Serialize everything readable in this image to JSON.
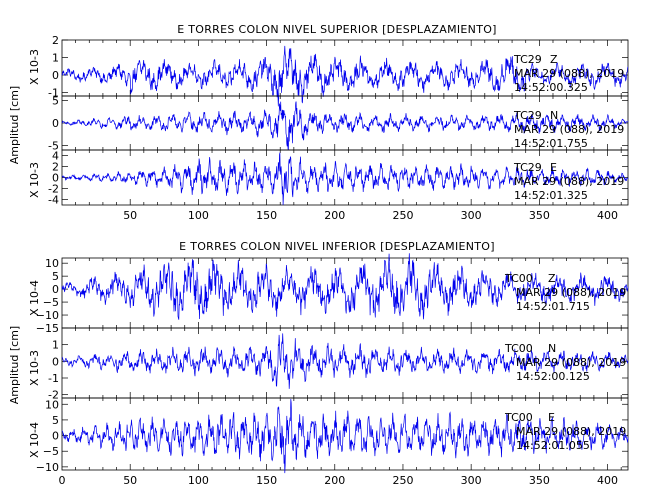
{
  "chart_data": [
    {
      "type": "line",
      "title": "E TORRES COLON NIVEL SUPERIOR [DESPLAZAMIENTO]",
      "ylabel": "Amplitud [cm]",
      "xlim": [
        0,
        415
      ],
      "x_ticks": [
        50,
        100,
        150,
        200,
        250,
        300,
        350,
        400
      ],
      "panels": [
        {
          "station": "TC29",
          "component": "Z",
          "date": "MAR 29 (088), 2019",
          "time": "14:52:00.325",
          "scale": "X 10-3",
          "ylim": [
            -1.2,
            2
          ],
          "y_ticks": [
            -1,
            0,
            1,
            2
          ],
          "y_tick_labels": [
            "-1",
            "0",
            "1",
            "2"
          ],
          "envelope": [
            [
              0,
              0.3
            ],
            [
              40,
              0.5
            ],
            [
              50,
              0.9
            ],
            [
              100,
              0.6
            ],
            [
              150,
              0.9
            ],
            [
              160,
              1.8
            ],
            [
              170,
              1.4
            ],
            [
              200,
              0.9
            ],
            [
              300,
              0.7
            ],
            [
              330,
              1.1
            ],
            [
              350,
              0.5
            ],
            [
              400,
              0.7
            ],
            [
              415,
              0.5
            ]
          ]
        },
        {
          "station": "TC29",
          "component": "N",
          "date": "MAR 29 (088), 2019",
          "time": "14:52:01.755",
          "scale": "",
          "ylim": [
            -6,
            6
          ],
          "y_ticks": [
            -5,
            0,
            5
          ],
          "y_tick_labels": [
            "-5",
            "0",
            "5"
          ],
          "envelope": [
            [
              0,
              0.3
            ],
            [
              50,
              1.5
            ],
            [
              100,
              2
            ],
            [
              150,
              2.5
            ],
            [
              165,
              5.8
            ],
            [
              180,
              3
            ],
            [
              200,
              2
            ],
            [
              300,
              1.5
            ],
            [
              340,
              2
            ],
            [
              400,
              1.5
            ],
            [
              415,
              0.5
            ]
          ]
        },
        {
          "station": "TC29",
          "component": "E",
          "date": "MAR 29 (088), 2019",
          "time": "14:52:01.325",
          "scale": "X 10-3",
          "ylim": [
            -5,
            5
          ],
          "y_ticks": [
            -4,
            -2,
            0,
            2,
            4
          ],
          "y_tick_labels": [
            "-4",
            "-2",
            "0",
            "2",
            "4"
          ],
          "envelope": [
            [
              0,
              0.3
            ],
            [
              50,
              1
            ],
            [
              90,
              2.5
            ],
            [
              100,
              3
            ],
            [
              150,
              2.5
            ],
            [
              165,
              4.8
            ],
            [
              180,
              2.5
            ],
            [
              250,
              2
            ],
            [
              300,
              2
            ],
            [
              350,
              1.5
            ],
            [
              400,
              1.2
            ],
            [
              415,
              0.5
            ]
          ]
        }
      ]
    },
    {
      "type": "line",
      "title": "E TORRES COLON NIVEL INFERIOR [DESPLAZAMIENTO]",
      "ylabel": "Amplitud [cm]",
      "xlim": [
        0,
        415
      ],
      "x_ticks": [
        0,
        50,
        100,
        150,
        200,
        250,
        300,
        350,
        400
      ],
      "panels": [
        {
          "station": "TC00",
          "component": "Z",
          "date": "MAR 29 (088), 2019",
          "time": "14:52:01.715",
          "scale": "X 10-4",
          "ylim": [
            -15,
            12
          ],
          "y_ticks": [
            -15,
            -10,
            -5,
            0,
            5,
            10
          ],
          "y_tick_labels": [
            "−15",
            "−10",
            "−5",
            "0",
            "5",
            "10"
          ],
          "envelope": [
            [
              0,
              2
            ],
            [
              50,
              7
            ],
            [
              95,
              11
            ],
            [
              150,
              8
            ],
            [
              200,
              8
            ],
            [
              240,
              12
            ],
            [
              300,
              7
            ],
            [
              350,
              5
            ],
            [
              400,
              5
            ],
            [
              415,
              3
            ]
          ]
        },
        {
          "station": "TC00",
          "component": "N",
          "date": "MAR 29 (088), 2019",
          "time": "14:52:00.125",
          "scale": "X 10-3",
          "ylim": [
            -2.2,
            2
          ],
          "y_ticks": [
            -2,
            -1,
            0,
            1
          ],
          "y_tick_labels": [
            "-2",
            "-1",
            "0",
            "1"
          ],
          "envelope": [
            [
              0,
              0.2
            ],
            [
              50,
              0.6
            ],
            [
              100,
              0.7
            ],
            [
              150,
              0.8
            ],
            [
              160,
              1.8
            ],
            [
              175,
              1
            ],
            [
              250,
              0.7
            ],
            [
              350,
              0.6
            ],
            [
              400,
              0.5
            ],
            [
              415,
              0.3
            ]
          ]
        },
        {
          "station": "TC00",
          "component": "E",
          "date": "MAR 29 (088), 2019",
          "time": "14:52:01.055",
          "scale": "X 10-4",
          "ylim": [
            -11,
            12
          ],
          "y_ticks": [
            -10,
            -5,
            0,
            5,
            10
          ],
          "y_tick_labels": [
            "−10",
            "−5",
            "0",
            "5",
            "10"
          ],
          "envelope": [
            [
              0,
              1.5
            ],
            [
              50,
              5
            ],
            [
              100,
              6
            ],
            [
              150,
              7
            ],
            [
              165,
              10
            ],
            [
              180,
              7
            ],
            [
              230,
              6
            ],
            [
              300,
              6
            ],
            [
              400,
              4
            ],
            [
              415,
              2
            ]
          ]
        }
      ]
    }
  ]
}
